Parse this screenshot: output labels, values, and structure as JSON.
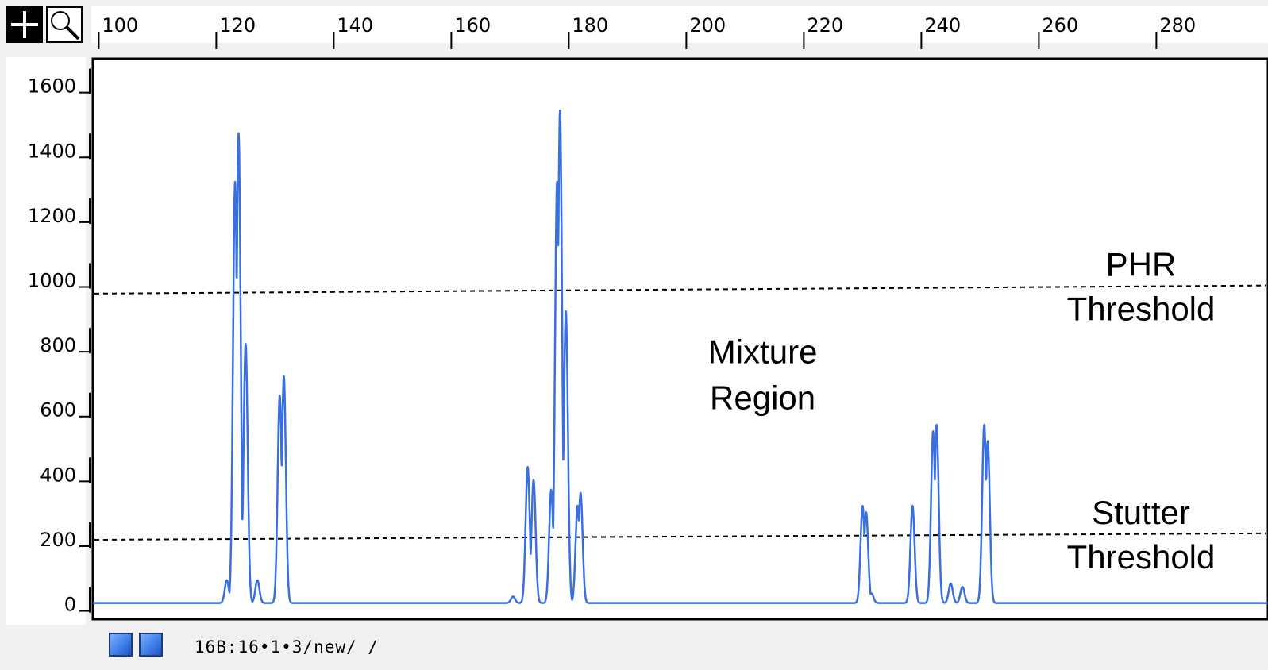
{
  "chart_data": {
    "type": "line",
    "x_ticks": [
      100,
      120,
      140,
      160,
      180,
      200,
      220,
      240,
      260,
      280
    ],
    "y_ticks": [
      "1600",
      "1400",
      "1200",
      "1000",
      "800",
      "600",
      "400",
      "200",
      "0"
    ],
    "xlim": [
      99,
      299
    ],
    "ylim": [
      -50,
      1680
    ],
    "trace_color": "#3a6fe0",
    "peaks": [
      {
        "x": 121.8,
        "y": 70
      },
      {
        "x": 123.2,
        "y": 1300
      },
      {
        "x": 123.8,
        "y": 1450
      },
      {
        "x": 125.0,
        "y": 800
      },
      {
        "x": 127.0,
        "y": 70
      },
      {
        "x": 130.8,
        "y": 640
      },
      {
        "x": 131.5,
        "y": 700
      },
      {
        "x": 170.5,
        "y": 20
      },
      {
        "x": 173.0,
        "y": 420
      },
      {
        "x": 174.0,
        "y": 380
      },
      {
        "x": 177.0,
        "y": 350
      },
      {
        "x": 178.0,
        "y": 1300
      },
      {
        "x": 178.5,
        "y": 1520
      },
      {
        "x": 179.5,
        "y": 900
      },
      {
        "x": 181.5,
        "y": 300
      },
      {
        "x": 182.0,
        "y": 340
      },
      {
        "x": 230.0,
        "y": 300
      },
      {
        "x": 230.6,
        "y": 280
      },
      {
        "x": 231.5,
        "y": 30
      },
      {
        "x": 238.5,
        "y": 300
      },
      {
        "x": 242.0,
        "y": 530
      },
      {
        "x": 242.6,
        "y": 550
      },
      {
        "x": 245.0,
        "y": 60
      },
      {
        "x": 247.0,
        "y": 50
      },
      {
        "x": 250.7,
        "y": 550
      },
      {
        "x": 251.3,
        "y": 500
      }
    ],
    "thresholds": [
      {
        "label_lines": [
          "PHR",
          "Threshold"
        ],
        "y_start": 955,
        "y_end": 980
      },
      {
        "label_lines": [
          "Stutter",
          "Threshold"
        ],
        "y_start": 195,
        "y_end": 215
      }
    ],
    "annotation": {
      "lines": [
        "Mixture",
        "Region"
      ],
      "x": 213,
      "y": 740
    }
  },
  "status_text": "16B:16•1•3/new/ /",
  "icons": {
    "crosshair": "crosshair-icon",
    "zoom": "magnifier-icon",
    "panels": "panel-icon"
  }
}
